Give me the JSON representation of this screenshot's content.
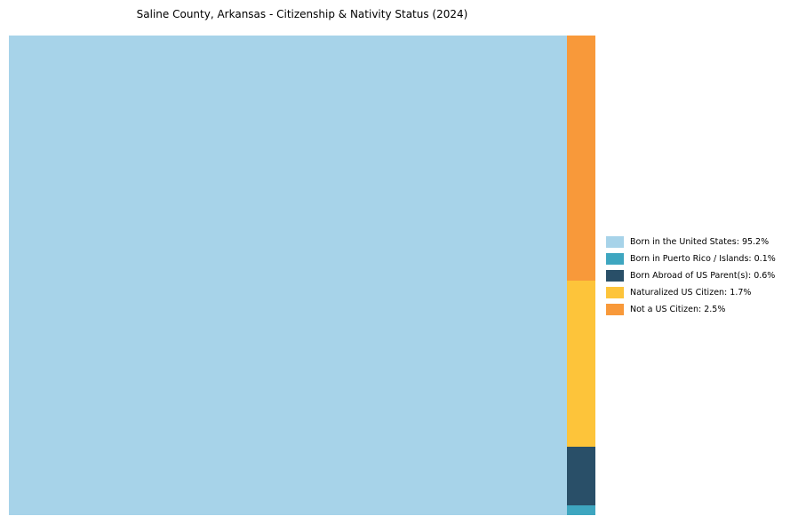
{
  "title": "Saline County, Arkansas - Citizenship & Nativity Status (2024)",
  "chart_data": {
    "type": "treemap",
    "title": "Saline County, Arkansas - Citizenship & Nativity Status (2024)",
    "categories": [
      "Born in the United States",
      "Born in Puerto Rico / Islands",
      "Born Abroad of US Parent(s)",
      "Naturalized US Citizen",
      "Not a US Citizen"
    ],
    "values": [
      95.2,
      0.1,
      0.6,
      1.7,
      2.5
    ],
    "unit": "%",
    "colors": [
      "#a7d3e9",
      "#3ea6c0",
      "#294f68",
      "#fdc43a",
      "#f8993a"
    ],
    "legend_labels": [
      "Born in the United States: 95.2%",
      "Born in Puerto Rico / Islands: 0.1%",
      "Born Abroad of US Parent(s): 0.6%",
      "Naturalized US Citizen: 1.7%",
      "Not a US Citizen: 2.5%"
    ],
    "legend_position": "right",
    "main_segment": "Born in the United States",
    "side_column_order_top_to_bottom": [
      "Not a US Citizen",
      "Naturalized US Citizen",
      "Born Abroad of US Parent(s)",
      "Born in Puerto Rico / Islands"
    ],
    "grid": false
  }
}
